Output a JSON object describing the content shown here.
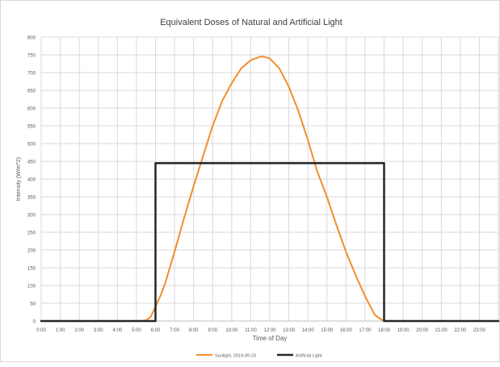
{
  "chart_data": {
    "type": "line",
    "title": "Equivalent Doses of Natural and Artificial Light",
    "xlabel": "Time of Day",
    "ylabel": "Intensity (W/m^2)",
    "xlim": [
      0,
      24
    ],
    "ylim": [
      0,
      800
    ],
    "y_ticks": [
      0,
      50,
      100,
      150,
      200,
      250,
      300,
      350,
      400,
      450,
      500,
      550,
      600,
      650,
      700,
      750,
      800
    ],
    "x_tick_labels": [
      "0:00",
      "1:00",
      "2:00",
      "3:00",
      "4:00",
      "5:00",
      "6:00",
      "7:00",
      "8:00",
      "9:00",
      "10:00",
      "11:00",
      "12:00",
      "13:00",
      "14:00",
      "15:00",
      "16:00",
      "17:00",
      "18:00",
      "19:00",
      "20:00",
      "21:00",
      "22:00",
      "23:00"
    ],
    "grid": true,
    "legend_position": "bottom",
    "series": [
      {
        "name": "Sunlight, 2019-09-23",
        "color": "#f28e2b",
        "x": [
          0,
          1,
          2,
          3,
          4,
          5,
          5.25,
          5.5,
          5.75,
          6,
          6.25,
          6.5,
          7,
          7.5,
          8,
          8.5,
          9,
          9.5,
          10,
          10.5,
          11,
          11.5,
          11.67,
          12,
          12.5,
          13,
          13.5,
          14,
          14.5,
          15,
          15.5,
          16,
          16.5,
          17,
          17.5,
          17.75,
          18,
          19,
          20,
          21,
          22,
          23,
          24
        ],
        "y": [
          0,
          0,
          0,
          0,
          0,
          0,
          0,
          2,
          12,
          40,
          70,
          105,
          195,
          290,
          380,
          465,
          550,
          620,
          670,
          712,
          735,
          745,
          745,
          740,
          712,
          660,
          592,
          510,
          420,
          350,
          270,
          195,
          130,
          70,
          18,
          8,
          0,
          0,
          0,
          0,
          0,
          0,
          0
        ]
      },
      {
        "name": "Artificial Light",
        "color": "#262626",
        "x": [
          0,
          6,
          6,
          18,
          18,
          24
        ],
        "y": [
          0,
          0,
          445,
          445,
          0,
          0
        ]
      }
    ]
  }
}
